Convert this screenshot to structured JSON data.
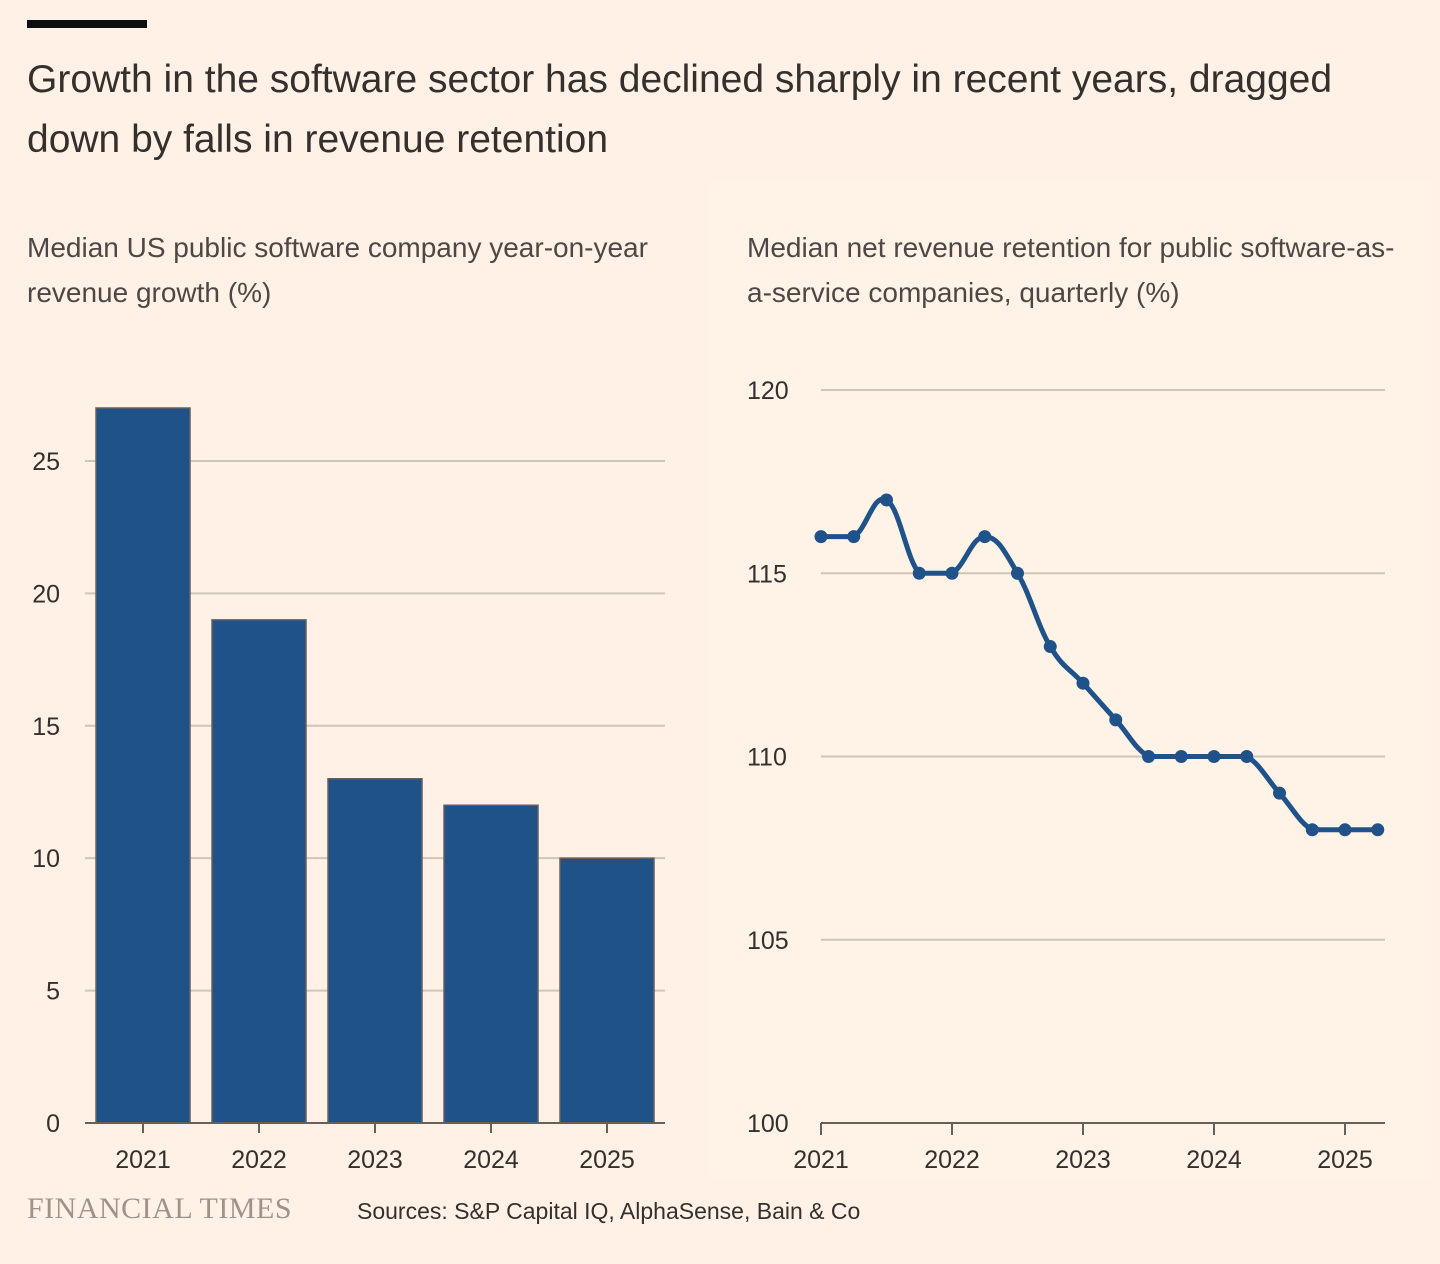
{
  "headline": "Growth in the software sector has declined sharply in recent years, dragged down by falls in revenue retention",
  "footer": {
    "logo": "FINANCIAL TIMES",
    "sources": "Sources: S&P Capital IQ, AlphaSense, Bain & Co"
  },
  "colors": {
    "background": "#FFF1E5",
    "series": "#1F5288",
    "gridline": "#CEC6B9",
    "text": "#33302E"
  },
  "chart_data": [
    {
      "type": "bar",
      "title": "Median US public software company year-on-year revenue growth (%)",
      "categories": [
        "2021",
        "2022",
        "2023",
        "2024",
        "2025"
      ],
      "values": [
        27,
        19,
        13,
        12,
        10
      ],
      "ylim": [
        0,
        27
      ],
      "yticks": [
        0,
        5,
        10,
        15,
        20,
        25
      ],
      "grid": true
    },
    {
      "type": "line",
      "title": "Median net revenue retention for public software-as-a-service companies, quarterly (%)",
      "x": [
        "2021-Q1",
        "2021-Q2",
        "2021-Q3",
        "2021-Q4",
        "2022-Q1",
        "2022-Q2",
        "2022-Q3",
        "2022-Q4",
        "2023-Q1",
        "2023-Q2",
        "2023-Q3",
        "2023-Q4",
        "2024-Q1",
        "2024-Q2",
        "2024-Q3",
        "2024-Q4",
        "2025-Q1",
        "2025-Q2"
      ],
      "values": [
        116,
        116,
        117,
        115,
        115,
        116,
        115,
        113,
        112,
        111,
        110,
        110,
        110,
        110,
        109,
        108,
        108,
        108
      ],
      "xticks": [
        "2021",
        "2022",
        "2023",
        "2024",
        "2025"
      ],
      "ylim": [
        100,
        120
      ],
      "yticks": [
        100,
        105,
        110,
        115,
        120
      ],
      "grid": true,
      "markers": true
    }
  ]
}
